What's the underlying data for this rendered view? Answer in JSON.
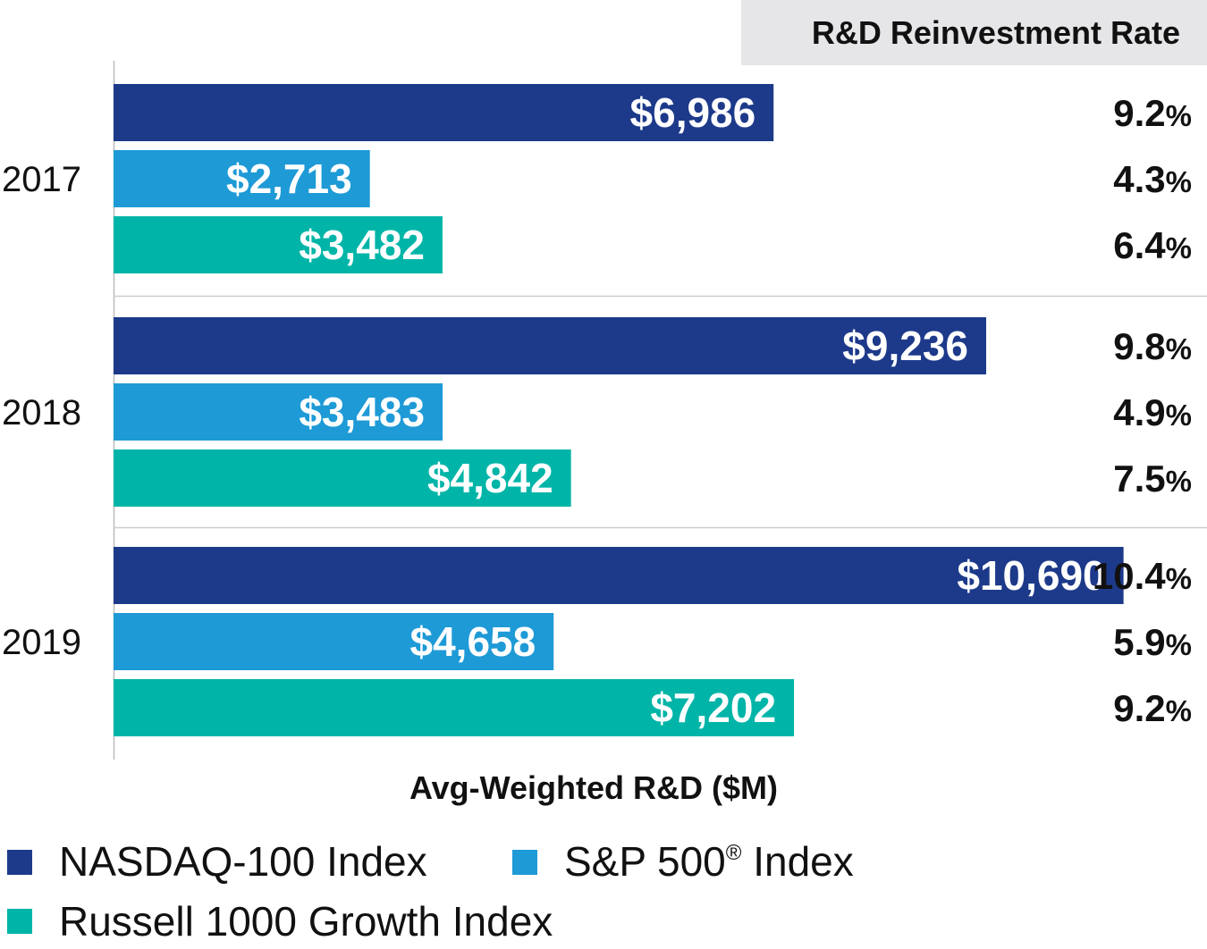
{
  "chart_data": {
    "type": "bar",
    "orientation": "horizontal",
    "categories": [
      "2017",
      "2018",
      "2019"
    ],
    "series": [
      {
        "name": "NASDAQ-100 Index",
        "color": "#1d3a8a",
        "values": [
          6986,
          9236,
          10690
        ],
        "labels": [
          "$6,986",
          "$9,236",
          "$10,690"
        ],
        "rates": [
          "9.2",
          "9.8",
          "10.4"
        ]
      },
      {
        "name": "S&P 500",
        "name_sup": "®",
        "name_suffix": " Index",
        "color": "#1e9ad6",
        "values": [
          2713,
          3483,
          4658
        ],
        "labels": [
          "$2,713",
          "$3,483",
          "$4,658"
        ],
        "rates": [
          "4.3",
          "4.9",
          "5.9"
        ]
      },
      {
        "name": "Russell 1000 Growth Index",
        "color": "#00b5a8",
        "values": [
          3482,
          4842,
          7202
        ],
        "labels": [
          "$3,482",
          "$4,842",
          "$7,202"
        ],
        "rates": [
          "6.4",
          "7.5",
          "9.2"
        ]
      }
    ],
    "rate_header": "R&D Reinvestment Rate",
    "rate_unit": "%",
    "xlabel": "Avg-Weighted R&D ($M)",
    "xlim": [
      0,
      11200
    ],
    "grid": false,
    "legend_position": "bottom-left"
  }
}
